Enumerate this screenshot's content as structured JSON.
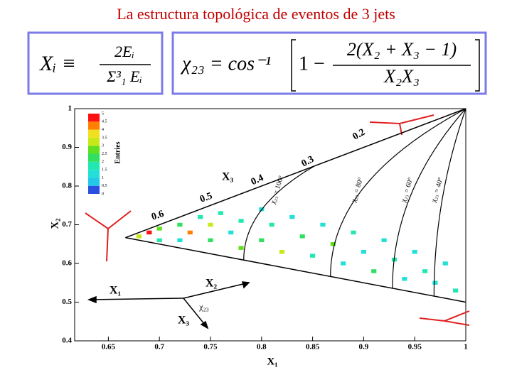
{
  "title": "La estructura topológica de eventos de 3 jets",
  "formula_1": {
    "lhs": "Xᵢ ≡",
    "numerator": "2Eᵢ",
    "denominator": "Σ³₁ Eᵢ"
  },
  "formula_2": {
    "lhs": "χ₂₃ = cos⁻¹",
    "lead": "1 −",
    "numerator": "2(X₂ + X₃ − 1)",
    "denominator": "X₂X₃"
  },
  "chart_data": {
    "type": "heatmap",
    "xlabel": "X₁",
    "ylabel": "X₂",
    "xlim": [
      0.617,
      1
    ],
    "ylim": [
      0.4,
      1
    ],
    "xticks": [
      0.65,
      0.7,
      0.75,
      0.8,
      0.85,
      0.9,
      0.95,
      1
    ],
    "yticks": [
      0.4,
      0.5,
      0.6,
      0.7,
      0.8,
      0.9,
      1
    ],
    "cells": {
      "x": [
        0.68,
        0.69,
        0.7,
        0.7,
        0.72,
        0.72,
        0.73,
        0.74,
        0.75,
        0.75,
        0.76,
        0.77,
        0.78,
        0.78,
        0.8,
        0.8,
        0.81,
        0.82,
        0.83,
        0.84,
        0.85,
        0.86,
        0.87,
        0.88,
        0.89,
        0.9,
        0.91,
        0.92,
        0.93,
        0.94,
        0.95,
        0.96,
        0.97,
        0.98,
        0.99
      ],
      "y": [
        0.67,
        0.68,
        0.69,
        0.66,
        0.7,
        0.66,
        0.68,
        0.72,
        0.7,
        0.66,
        0.73,
        0.68,
        0.64,
        0.71,
        0.74,
        0.66,
        0.7,
        0.63,
        0.72,
        0.67,
        0.62,
        0.7,
        0.65,
        0.6,
        0.68,
        0.63,
        0.58,
        0.66,
        0.61,
        0.56,
        0.63,
        0.58,
        0.55,
        0.6,
        0.53
      ],
      "values": [
        3,
        5,
        2.5,
        1.5,
        2,
        1,
        4,
        1.5,
        3,
        2,
        1.5,
        1,
        2.5,
        1.5,
        1,
        2,
        1.5,
        3,
        1,
        2,
        1.5,
        1,
        2.5,
        1,
        1.5,
        1,
        2,
        1,
        1.5,
        1,
        1,
        1.5,
        1,
        1,
        1.5
      ]
    },
    "colorbar": {
      "label": "Entries",
      "ticks": [
        0,
        0.5,
        1,
        1.5,
        2,
        2.5,
        3,
        3.5,
        4,
        4.5,
        5
      ],
      "colors": [
        "#2a4fe0",
        "#22c8e8",
        "#22e0d8",
        "#20e8b0",
        "#30e060",
        "#60e020",
        "#c8e818",
        "#f0e020",
        "#ff8000",
        "#ff1010"
      ]
    },
    "chi_curves": [
      {
        "value": 100,
        "label": "χ₂₃ = 100°"
      },
      {
        "value": 80,
        "label": "χ₂₃ = 80°"
      },
      {
        "value": 60,
        "label": "χ₂₃ = 60°"
      },
      {
        "value": 40,
        "label": "χ₂₃ = 40°"
      }
    ],
    "annotations": [
      "0.2",
      "0.3",
      "0.4",
      "0.5",
      "0.6",
      "X₃",
      "X₁",
      "X₂",
      "X₃",
      "χ₂₃"
    ]
  }
}
